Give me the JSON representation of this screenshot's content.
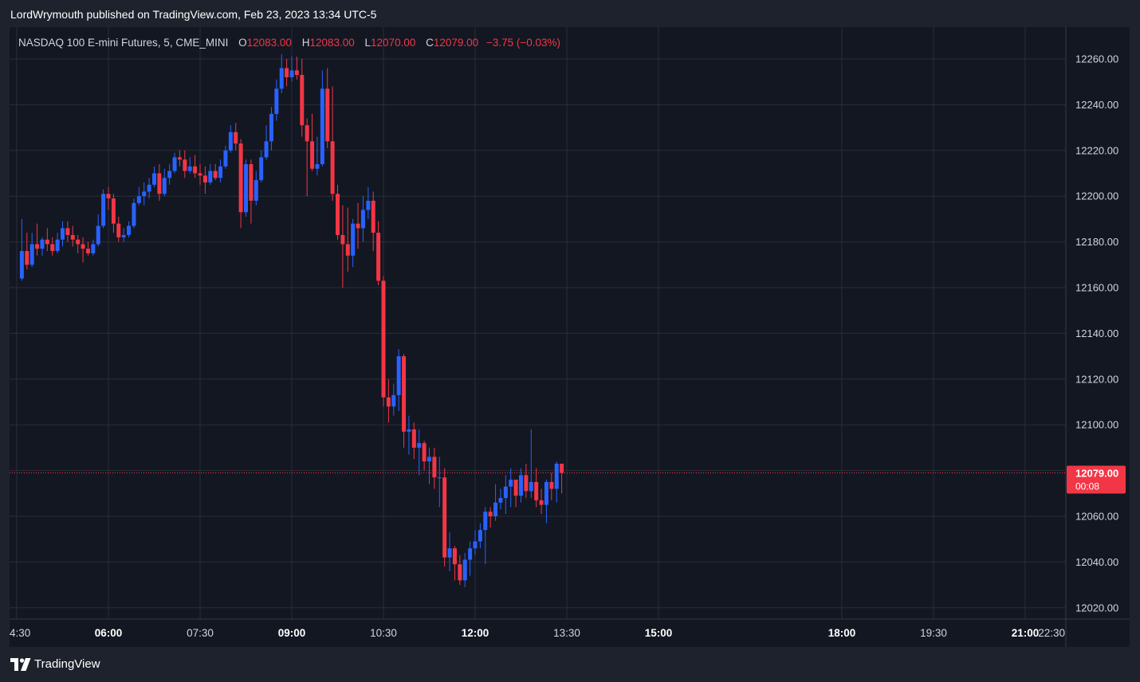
{
  "header": {
    "publisher_line": "LordWrymouth published on TradingView.com, Feb 23, 2023 13:34 UTC-5"
  },
  "legend": {
    "symbol": "NASDAQ 100 E-mini Futures, 5, CME_MINI",
    "open_label": "O",
    "open_value": "12083.00",
    "high_label": "H",
    "high_value": "12083.00",
    "low_label": "L",
    "low_value": "12070.00",
    "close_label": "C",
    "close_value": "12079.00",
    "change": "−3.75 (−0.03%)"
  },
  "price_tag": {
    "price": "12079.00",
    "countdown": "00:08"
  },
  "footer": {
    "brand": "TradingView",
    "logo_icon": "tradingview-logo-icon"
  },
  "colors": {
    "background": "#131722",
    "frame": "#1e222d",
    "grid": "#2a2e39",
    "up": "#2962ff",
    "down": "#f23645",
    "text": "#d1d4dc"
  },
  "chart_data": {
    "type": "candlestick",
    "interval_minutes": 5,
    "y_ticks": [
      12020,
      12040,
      12060,
      12080,
      12100,
      12120,
      12140,
      12160,
      12180,
      12200,
      12220,
      12240,
      12260
    ],
    "x_ticks": [
      {
        "label": "4:30",
        "time": "04:30"
      },
      {
        "label": "06:00",
        "time": "06:00"
      },
      {
        "label": "07:30",
        "time": "07:30"
      },
      {
        "label": "09:00",
        "time": "09:00"
      },
      {
        "label": "10:30",
        "time": "10:30"
      },
      {
        "label": "12:00",
        "time": "12:00"
      },
      {
        "label": "13:30",
        "time": "13:30"
      },
      {
        "label": "15:00",
        "time": "15:00"
      },
      {
        "label": "18:00",
        "time": "18:00"
      },
      {
        "label": "19:30",
        "time": "19:30"
      },
      {
        "label": "21:00",
        "time": "21:00"
      },
      {
        "label": "22:30",
        "time": "22:30"
      }
    ],
    "last_price": 12079,
    "start_time": "04:35",
    "candles": [
      {
        "t": "04:35",
        "o": 12164,
        "h": 12190,
        "l": 12163,
        "c": 12176
      },
      {
        "t": "04:40",
        "o": 12176,
        "h": 12184,
        "l": 12168,
        "c": 12170
      },
      {
        "t": "04:45",
        "o": 12170,
        "h": 12184,
        "l": 12169,
        "c": 12179
      },
      {
        "t": "04:50",
        "o": 12179,
        "h": 12188,
        "l": 12174,
        "c": 12177
      },
      {
        "t": "04:55",
        "o": 12177,
        "h": 12182,
        "l": 12174,
        "c": 12181
      },
      {
        "t": "05:00",
        "o": 12181,
        "h": 12186,
        "l": 12176,
        "c": 12179
      },
      {
        "t": "05:05",
        "o": 12179,
        "h": 12182,
        "l": 12174,
        "c": 12176
      },
      {
        "t": "05:10",
        "o": 12176,
        "h": 12184,
        "l": 12175,
        "c": 12181
      },
      {
        "t": "05:15",
        "o": 12181,
        "h": 12189,
        "l": 12178,
        "c": 12186
      },
      {
        "t": "05:20",
        "o": 12186,
        "h": 12189,
        "l": 12180,
        "c": 12183
      },
      {
        "t": "05:25",
        "o": 12183,
        "h": 12187,
        "l": 12178,
        "c": 12181
      },
      {
        "t": "05:30",
        "o": 12181,
        "h": 12183,
        "l": 12175,
        "c": 12179
      },
      {
        "t": "05:35",
        "o": 12179,
        "h": 12182,
        "l": 12171,
        "c": 12177
      },
      {
        "t": "05:40",
        "o": 12177,
        "h": 12180,
        "l": 12174,
        "c": 12175
      },
      {
        "t": "05:45",
        "o": 12175,
        "h": 12181,
        "l": 12174,
        "c": 12179
      },
      {
        "t": "05:50",
        "o": 12179,
        "h": 12192,
        "l": 12178,
        "c": 12187
      },
      {
        "t": "05:55",
        "o": 12187,
        "h": 12203,
        "l": 12186,
        "c": 12201
      },
      {
        "t": "06:00",
        "o": 12201,
        "h": 12204,
        "l": 12194,
        "c": 12199
      },
      {
        "t": "06:05",
        "o": 12199,
        "h": 12201,
        "l": 12184,
        "c": 12188
      },
      {
        "t": "06:10",
        "o": 12188,
        "h": 12191,
        "l": 12180,
        "c": 12182
      },
      {
        "t": "06:15",
        "o": 12182,
        "h": 12186,
        "l": 12180,
        "c": 12183
      },
      {
        "t": "06:20",
        "o": 12183,
        "h": 12189,
        "l": 12182,
        "c": 12187
      },
      {
        "t": "06:25",
        "o": 12187,
        "h": 12199,
        "l": 12186,
        "c": 12197
      },
      {
        "t": "06:30",
        "o": 12197,
        "h": 12204,
        "l": 12196,
        "c": 12200
      },
      {
        "t": "06:35",
        "o": 12200,
        "h": 12206,
        "l": 12196,
        "c": 12202
      },
      {
        "t": "06:40",
        "o": 12202,
        "h": 12208,
        "l": 12199,
        "c": 12205
      },
      {
        "t": "06:45",
        "o": 12205,
        "h": 12213,
        "l": 12204,
        "c": 12210
      },
      {
        "t": "06:50",
        "o": 12210,
        "h": 12214,
        "l": 12198,
        "c": 12201
      },
      {
        "t": "06:55",
        "o": 12201,
        "h": 12212,
        "l": 12200,
        "c": 12208
      },
      {
        "t": "07:00",
        "o": 12208,
        "h": 12214,
        "l": 12205,
        "c": 12211
      },
      {
        "t": "07:05",
        "o": 12211,
        "h": 12219,
        "l": 12210,
        "c": 12217
      },
      {
        "t": "07:10",
        "o": 12217,
        "h": 12220,
        "l": 12213,
        "c": 12216
      },
      {
        "t": "07:15",
        "o": 12216,
        "h": 12220,
        "l": 12208,
        "c": 12211
      },
      {
        "t": "07:20",
        "o": 12211,
        "h": 12217,
        "l": 12210,
        "c": 12213
      },
      {
        "t": "07:25",
        "o": 12213,
        "h": 12218,
        "l": 12208,
        "c": 12210
      },
      {
        "t": "07:30",
        "o": 12210,
        "h": 12214,
        "l": 12205,
        "c": 12209
      },
      {
        "t": "07:35",
        "o": 12209,
        "h": 12213,
        "l": 12201,
        "c": 12206
      },
      {
        "t": "07:40",
        "o": 12206,
        "h": 12214,
        "l": 12205,
        "c": 12211
      },
      {
        "t": "07:45",
        "o": 12211,
        "h": 12214,
        "l": 12207,
        "c": 12208
      },
      {
        "t": "07:50",
        "o": 12208,
        "h": 12216,
        "l": 12206,
        "c": 12213
      },
      {
        "t": "07:55",
        "o": 12213,
        "h": 12222,
        "l": 12212,
        "c": 12220
      },
      {
        "t": "08:00",
        "o": 12220,
        "h": 12231,
        "l": 12219,
        "c": 12228
      },
      {
        "t": "08:05",
        "o": 12228,
        "h": 12232,
        "l": 12220,
        "c": 12223
      },
      {
        "t": "08:10",
        "o": 12223,
        "h": 12225,
        "l": 12186,
        "c": 12193
      },
      {
        "t": "08:15",
        "o": 12193,
        "h": 12216,
        "l": 12191,
        "c": 12214
      },
      {
        "t": "08:20",
        "o": 12214,
        "h": 12216,
        "l": 12188,
        "c": 12198
      },
      {
        "t": "08:25",
        "o": 12198,
        "h": 12211,
        "l": 12196,
        "c": 12207
      },
      {
        "t": "08:30",
        "o": 12207,
        "h": 12220,
        "l": 12206,
        "c": 12217
      },
      {
        "t": "08:35",
        "o": 12217,
        "h": 12231,
        "l": 12216,
        "c": 12224
      },
      {
        "t": "08:40",
        "o": 12224,
        "h": 12239,
        "l": 12220,
        "c": 12236
      },
      {
        "t": "08:45",
        "o": 12236,
        "h": 12251,
        "l": 12233,
        "c": 12247
      },
      {
        "t": "08:50",
        "o": 12247,
        "h": 12262,
        "l": 12245,
        "c": 12256
      },
      {
        "t": "08:55",
        "o": 12256,
        "h": 12260,
        "l": 12248,
        "c": 12252
      },
      {
        "t": "09:00",
        "o": 12252,
        "h": 12261,
        "l": 12250,
        "c": 12255
      },
      {
        "t": "09:05",
        "o": 12255,
        "h": 12261,
        "l": 12251,
        "c": 12253
      },
      {
        "t": "09:10",
        "o": 12253,
        "h": 12260,
        "l": 12226,
        "c": 12231
      },
      {
        "t": "09:15",
        "o": 12231,
        "h": 12234,
        "l": 12200,
        "c": 12224
      },
      {
        "t": "09:20",
        "o": 12224,
        "h": 12236,
        "l": 12211,
        "c": 12212
      },
      {
        "t": "09:25",
        "o": 12212,
        "h": 12226,
        "l": 12209,
        "c": 12214
      },
      {
        "t": "09:30",
        "o": 12214,
        "h": 12255,
        "l": 12213,
        "c": 12247
      },
      {
        "t": "09:35",
        "o": 12247,
        "h": 12256,
        "l": 12221,
        "c": 12224
      },
      {
        "t": "09:40",
        "o": 12224,
        "h": 12248,
        "l": 12198,
        "c": 12201
      },
      {
        "t": "09:45",
        "o": 12201,
        "h": 12205,
        "l": 12181,
        "c": 12183
      },
      {
        "t": "09:50",
        "o": 12183,
        "h": 12196,
        "l": 12160,
        "c": 12179
      },
      {
        "t": "09:55",
        "o": 12179,
        "h": 12195,
        "l": 12167,
        "c": 12174
      },
      {
        "t": "10:00",
        "o": 12174,
        "h": 12190,
        "l": 12169,
        "c": 12188
      },
      {
        "t": "10:05",
        "o": 12188,
        "h": 12197,
        "l": 12177,
        "c": 12186
      },
      {
        "t": "10:10",
        "o": 12186,
        "h": 12200,
        "l": 12180,
        "c": 12194
      },
      {
        "t": "10:15",
        "o": 12194,
        "h": 12204,
        "l": 12190,
        "c": 12198
      },
      {
        "t": "10:20",
        "o": 12198,
        "h": 12202,
        "l": 12176,
        "c": 12184
      },
      {
        "t": "10:25",
        "o": 12184,
        "h": 12189,
        "l": 12161,
        "c": 12163
      },
      {
        "t": "10:30",
        "o": 12163,
        "h": 12165,
        "l": 12108,
        "c": 12112
      },
      {
        "t": "10:35",
        "o": 12112,
        "h": 12120,
        "l": 12101,
        "c": 12108
      },
      {
        "t": "10:40",
        "o": 12108,
        "h": 12118,
        "l": 12104,
        "c": 12113
      },
      {
        "t": "10:45",
        "o": 12113,
        "h": 12133,
        "l": 12106,
        "c": 12130
      },
      {
        "t": "10:50",
        "o": 12130,
        "h": 12131,
        "l": 12090,
        "c": 12097
      },
      {
        "t": "10:55",
        "o": 12097,
        "h": 12104,
        "l": 12087,
        "c": 12098
      },
      {
        "t": "11:00",
        "o": 12098,
        "h": 12101,
        "l": 12085,
        "c": 12090
      },
      {
        "t": "11:05",
        "o": 12090,
        "h": 12098,
        "l": 12078,
        "c": 12092
      },
      {
        "t": "11:10",
        "o": 12092,
        "h": 12093,
        "l": 12080,
        "c": 12084
      },
      {
        "t": "11:15",
        "o": 12084,
        "h": 12090,
        "l": 12074,
        "c": 12086
      },
      {
        "t": "11:20",
        "o": 12086,
        "h": 12090,
        "l": 12072,
        "c": 12077
      },
      {
        "t": "11:25",
        "o": 12077,
        "h": 12086,
        "l": 12064,
        "c": 12077
      },
      {
        "t": "11:30",
        "o": 12077,
        "h": 12081,
        "l": 12038,
        "c": 12042
      },
      {
        "t": "11:35",
        "o": 12042,
        "h": 12053,
        "l": 12036,
        "c": 12046
      },
      {
        "t": "11:40",
        "o": 12046,
        "h": 12047,
        "l": 12032,
        "c": 12039
      },
      {
        "t": "11:45",
        "o": 12039,
        "h": 12043,
        "l": 12030,
        "c": 12032
      },
      {
        "t": "11:50",
        "o": 12032,
        "h": 12044,
        "l": 12029,
        "c": 12041
      },
      {
        "t": "11:55",
        "o": 12041,
        "h": 12049,
        "l": 12034,
        "c": 12046
      },
      {
        "t": "12:00",
        "o": 12046,
        "h": 12054,
        "l": 12043,
        "c": 12049
      },
      {
        "t": "12:05",
        "o": 12049,
        "h": 12057,
        "l": 12046,
        "c": 12054
      },
      {
        "t": "12:10",
        "o": 12054,
        "h": 12064,
        "l": 12039,
        "c": 12062
      },
      {
        "t": "12:15",
        "o": 12062,
        "h": 12064,
        "l": 12055,
        "c": 12060
      },
      {
        "t": "12:20",
        "o": 12060,
        "h": 12074,
        "l": 12058,
        "c": 12066
      },
      {
        "t": "12:25",
        "o": 12066,
        "h": 12072,
        "l": 12063,
        "c": 12068
      },
      {
        "t": "12:30",
        "o": 12068,
        "h": 12078,
        "l": 12061,
        "c": 12073
      },
      {
        "t": "12:35",
        "o": 12073,
        "h": 12081,
        "l": 12064,
        "c": 12076
      },
      {
        "t": "12:40",
        "o": 12076,
        "h": 12076,
        "l": 12064,
        "c": 12069
      },
      {
        "t": "12:45",
        "o": 12069,
        "h": 12081,
        "l": 12066,
        "c": 12078
      },
      {
        "t": "12:50",
        "o": 12078,
        "h": 12083,
        "l": 12068,
        "c": 12071
      },
      {
        "t": "12:55",
        "o": 12071,
        "h": 12098,
        "l": 12068,
        "c": 12075
      },
      {
        "t": "13:00",
        "o": 12075,
        "h": 12081,
        "l": 12064,
        "c": 12067
      },
      {
        "t": "13:05",
        "o": 12067,
        "h": 12072,
        "l": 12061,
        "c": 12065
      },
      {
        "t": "13:10",
        "o": 12065,
        "h": 12076,
        "l": 12057,
        "c": 12075
      },
      {
        "t": "13:15",
        "o": 12075,
        "h": 12079,
        "l": 12067,
        "c": 12072
      },
      {
        "t": "13:20",
        "o": 12072,
        "h": 12084,
        "l": 12066,
        "c": 12083
      },
      {
        "t": "13:25",
        "o": 12083,
        "h": 12083,
        "l": 12070,
        "c": 12079
      }
    ]
  }
}
